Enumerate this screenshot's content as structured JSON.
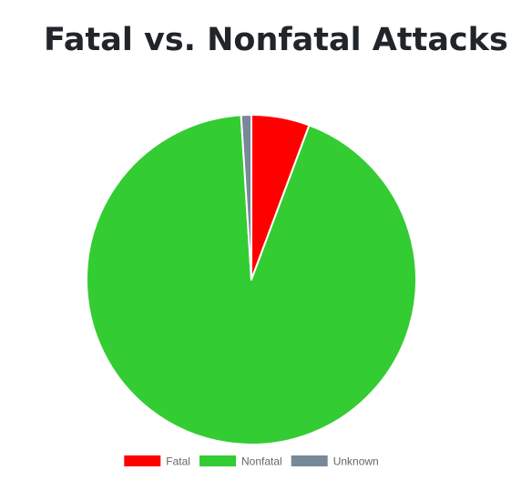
{
  "title": "Fatal vs. Nonfatal Attacks",
  "chart_data": {
    "type": "pie",
    "title": "Fatal vs. Nonfatal Attacks",
    "legend_position": "bottom",
    "slices": [
      {
        "label": "Fatal",
        "value": 5.7,
        "color": "#ff0000"
      },
      {
        "label": "Nonfatal",
        "value": 93.3,
        "color": "#33cc33"
      },
      {
        "label": "Unknown",
        "value": 1.0,
        "color": "#778899"
      }
    ]
  }
}
